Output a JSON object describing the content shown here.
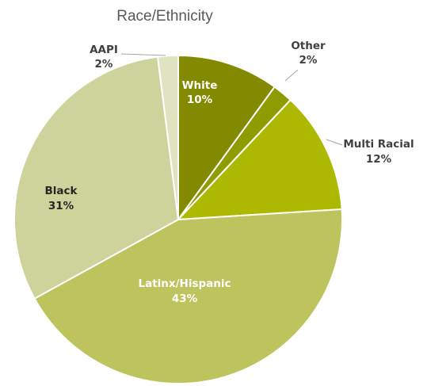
{
  "chart_data": {
    "type": "pie",
    "title": "Race/Ethnicity",
    "start_angle_deg": 0,
    "direction": "clockwise",
    "slices": [
      {
        "label": "White",
        "value": 10,
        "value_label": "10%",
        "color": "#848a00",
        "label_color": "#ffffff",
        "label_position": "inside"
      },
      {
        "label": "Other",
        "value": 2,
        "value_label": "2%",
        "color": "#8e9c00",
        "label_color": "#404040",
        "label_position": "outside"
      },
      {
        "label": "Multi Racial",
        "value": 12,
        "value_label": "12%",
        "color": "#adb800",
        "label_color": "#404040",
        "label_position": "outside"
      },
      {
        "label": "Latinx/Hispanic",
        "value": 43,
        "value_label": "43%",
        "color": "#bdc45d",
        "label_color": "#ffffff",
        "label_position": "inside"
      },
      {
        "label": "Black",
        "value": 31,
        "value_label": "31%",
        "color": "#cdd39a",
        "label_color": "#262626",
        "label_position": "inside"
      },
      {
        "label": "AAPI",
        "value": 2,
        "value_label": "2%",
        "color": "#dfe3bf",
        "label_color": "#404040",
        "label_position": "outside"
      }
    ],
    "legend": "none"
  }
}
